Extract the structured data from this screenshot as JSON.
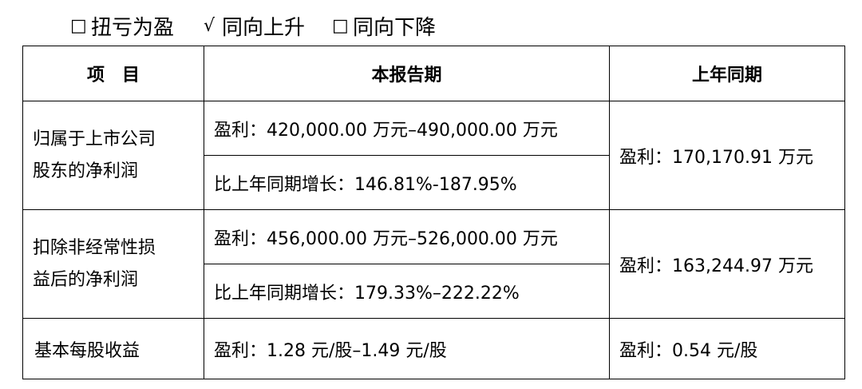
{
  "options": [
    {
      "mark": "□",
      "label": "扭亏为盈"
    },
    {
      "mark": "√",
      "label": "同向上升"
    },
    {
      "mark": "□",
      "label": "同向下降"
    }
  ],
  "table": {
    "headers": [
      "项　目",
      "本报告期",
      "上年同期"
    ],
    "rows": [
      {
        "item_line1": "归属于上市公司",
        "item_line2": "股东的净利润",
        "current_profit": "盈利：420,000.00 万元–490,000.00 万元",
        "current_growth": "比上年同期增长：146.81%-187.95%",
        "prior": "盈利：170,170.91 万元"
      },
      {
        "item_line1": "扣除非经常性损",
        "item_line2": "益后的净利润",
        "current_profit": "盈利：456,000.00 万元–526,000.00 万元",
        "current_growth": "比上年同期增长：179.33%–222.22%",
        "prior": "盈利：163,244.97 万元"
      },
      {
        "item": "基本每股收益",
        "current": "盈利：1.28 元/股–1.49 元/股",
        "prior": "盈利：0.54 元/股"
      }
    ]
  }
}
